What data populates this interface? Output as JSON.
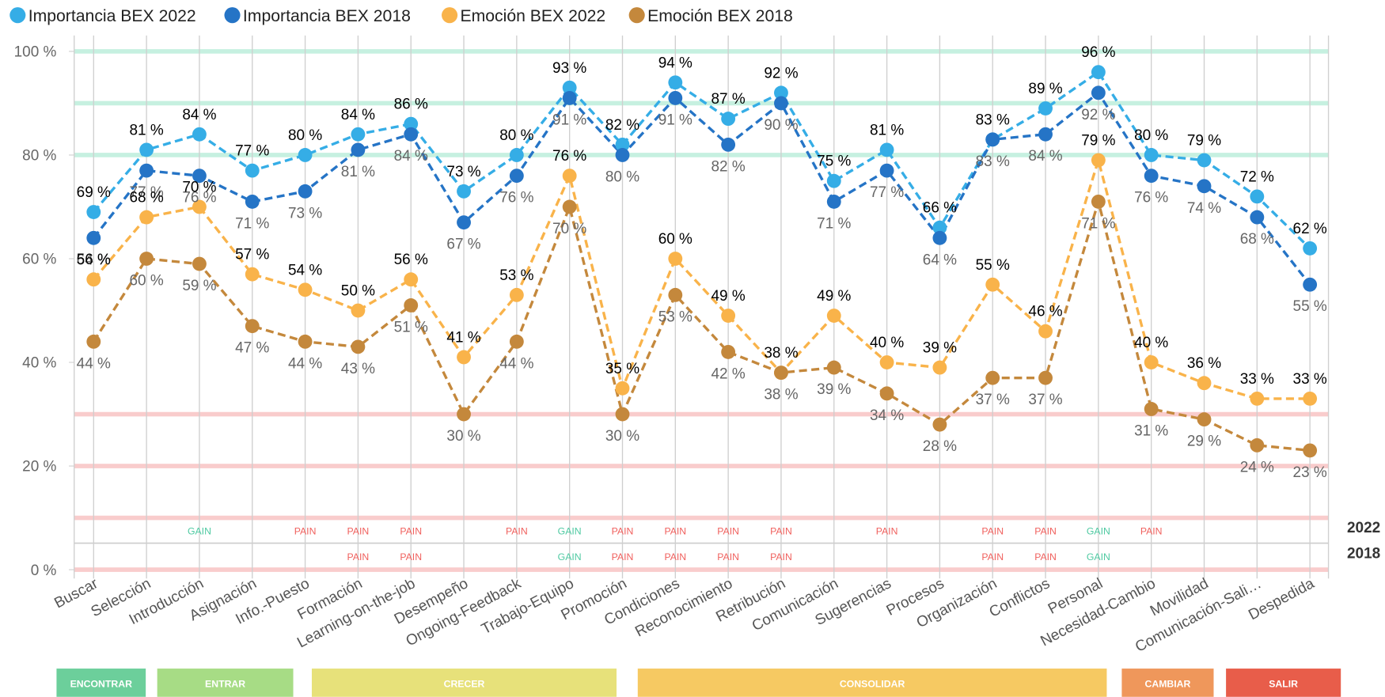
{
  "chart_data": {
    "type": "line",
    "categories": [
      "Buscar",
      "Selección",
      "Introducción",
      "Asignación",
      "Info.-Puesto",
      "Formación",
      "Learning-on-the-job",
      "Desempeño",
      "Ongoing-Feedback",
      "Trabajo-Equipo",
      "Promoción",
      "Condiciones",
      "Reconocimiento",
      "Retribución",
      "Comunicación",
      "Sugerencias",
      "Procesos",
      "Organización",
      "Conflictos",
      "Personal",
      "Necesidad-Cambio",
      "Movilidad",
      "Comunicación-Sali…",
      "Despedida"
    ],
    "series": [
      {
        "name": "Importancia BEX 2022",
        "color": "#35ade6",
        "label_color": "#000000",
        "values": [
          69,
          81,
          84,
          77,
          80,
          84,
          86,
          73,
          80,
          93,
          82,
          94,
          87,
          92,
          75,
          81,
          66,
          83,
          89,
          96,
          80,
          79,
          72,
          62
        ],
        "value_labels": [
          "69 %",
          "81 %",
          "84 %",
          "77 %",
          "80 %",
          "84 %",
          "86 %",
          "73 %",
          "80 %",
          "93 %",
          "82 %",
          "94 %",
          "87 %",
          "92 %",
          "75 %",
          "81 %",
          "66 %",
          "83 %",
          "89 %",
          "96 %",
          "80 %",
          "79 %",
          "72 %",
          "62 %"
        ]
      },
      {
        "name": "Importancia BEX 2018",
        "color": "#2574c6",
        "label_color": "#666666",
        "values": [
          64,
          77,
          76,
          71,
          73,
          81,
          84,
          67,
          76,
          91,
          80,
          91,
          82,
          90,
          71,
          77,
          64,
          83,
          84,
          92,
          76,
          74,
          68,
          55
        ],
        "value_labels": [
          "64 %",
          "77 %",
          "76 %",
          "71 %",
          "73 %",
          "81 %",
          "84 %",
          "67 %",
          "76 %",
          "91 %",
          "80 %",
          "91 %",
          "82 %",
          "90 %",
          "71 %",
          "77 %",
          "64 %",
          "83 %",
          "84 %",
          "92 %",
          "76 %",
          "74 %",
          "68 %",
          "55 %"
        ]
      },
      {
        "name": "Emoción BEX 2022",
        "color": "#f9b34a",
        "label_color": "#000000",
        "values": [
          56,
          68,
          70,
          57,
          54,
          50,
          56,
          41,
          53,
          76,
          35,
          60,
          49,
          38,
          49,
          40,
          39,
          55,
          46,
          79,
          40,
          36,
          33,
          33
        ],
        "value_labels": [
          "56 %",
          "68 %",
          "70 %",
          "57 %",
          "54 %",
          "50 %",
          "56 %",
          "41 %",
          "53 %",
          "76 %",
          "35 %",
          "60 %",
          "49 %",
          "38 %",
          "49 %",
          "40 %",
          "39 %",
          "55 %",
          "46 %",
          "79 %",
          "40 %",
          "36 %",
          "33 %",
          "33 %"
        ]
      },
      {
        "name": "Emoción BEX 2018",
        "color": "#c4883c",
        "label_color": "#666666",
        "values": [
          44,
          60,
          59,
          47,
          44,
          43,
          51,
          30,
          44,
          70,
          30,
          53,
          42,
          38,
          39,
          34,
          28,
          37,
          37,
          71,
          31,
          29,
          24,
          23
        ],
        "value_labels": [
          "44 %",
          "60 %",
          "59 %",
          "47 %",
          "44 %",
          "43 %",
          "51 %",
          "30 %",
          "44 %",
          "70 %",
          "30 %",
          "53 %",
          "42 %",
          "38 %",
          "39 %",
          "34 %",
          "28 %",
          "37 %",
          "37 %",
          "71 %",
          "31 %",
          "29 %",
          "24 %",
          "23 %"
        ]
      }
    ],
    "ylim": [
      0,
      100
    ],
    "yticks": [
      {
        "value": 0,
        "label": "0 %"
      },
      {
        "value": 20,
        "label": "20 %"
      },
      {
        "value": 40,
        "label": "40 %"
      },
      {
        "value": 60,
        "label": "60 %"
      },
      {
        "value": 80,
        "label": "80 %"
      },
      {
        "value": 100,
        "label": "100 %"
      }
    ],
    "reference_lines": [
      {
        "value": 100,
        "color": "#c6f0e0"
      },
      {
        "value": 90,
        "color": "#c6f0e0"
      },
      {
        "value": 80,
        "color": "#c6f0e0"
      },
      {
        "value": 30,
        "color": "#f9cccc"
      },
      {
        "value": 20,
        "color": "#f9cccc"
      },
      {
        "value": 10,
        "color": "#f9cccc"
      },
      {
        "value": 0,
        "color": "#f9cccc"
      }
    ],
    "legend": "top-left",
    "gain_pain": {
      "colors": {
        "GAIN": "#4fcaa2",
        "PAIN": "#f0615e"
      },
      "rows": [
        {
          "label": "2022",
          "values": [
            null,
            null,
            "GAIN",
            null,
            "PAIN",
            "PAIN",
            "PAIN",
            null,
            "PAIN",
            "GAIN",
            "PAIN",
            "PAIN",
            "PAIN",
            "PAIN",
            null,
            "PAIN",
            null,
            "PAIN",
            "PAIN",
            "GAIN",
            "PAIN",
            null,
            null,
            null
          ]
        },
        {
          "label": "2018",
          "values": [
            null,
            null,
            null,
            null,
            null,
            "PAIN",
            "PAIN",
            null,
            null,
            "GAIN",
            "PAIN",
            "PAIN",
            "PAIN",
            "PAIN",
            null,
            null,
            null,
            "PAIN",
            "PAIN",
            "GAIN",
            null,
            null,
            null,
            null
          ]
        }
      ]
    },
    "stages": [
      {
        "label": "ENCONTRAR",
        "color": "#6ccf9b"
      },
      {
        "label": "ENTRAR",
        "color": "#a7dc85"
      },
      {
        "label": "CRECER",
        "color": "#e7e17a"
      },
      {
        "label": "CONSOLIDAR",
        "color": "#f6c962"
      },
      {
        "label": "CAMBIAR",
        "color": "#ef975b"
      },
      {
        "label": "SALIR",
        "color": "#e85d4a"
      }
    ]
  }
}
